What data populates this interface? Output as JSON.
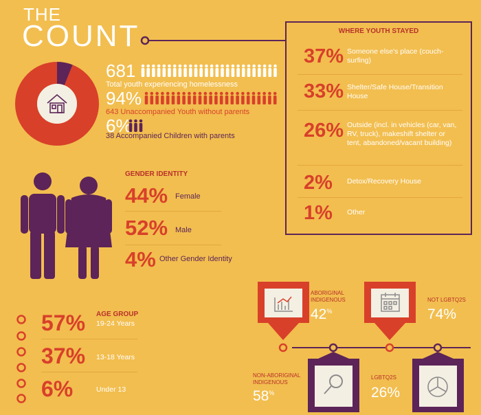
{
  "title": {
    "line1": "THE",
    "line2": "COUNT"
  },
  "colors": {
    "background": "#f2be4f",
    "red": "#d8402a",
    "purple": "#5c2458",
    "white": "#ffffff"
  },
  "count": {
    "total": {
      "value": "681",
      "caption": "Total youth experiencing homelessness"
    },
    "unaccompanied": {
      "value": "94%",
      "caption": "643  Unaccompanied Youth without parents"
    },
    "accompanied": {
      "value": "6%",
      "caption": "38  Accompanied Children with parents"
    },
    "icons": {
      "house": "house-icon",
      "person": "person-icon"
    }
  },
  "chart_data": [
    {
      "type": "pie",
      "title": "",
      "categories": [
        "Unaccompanied Youth",
        "Accompanied Children"
      ],
      "values": [
        94,
        6
      ],
      "colors": [
        "#d8402a",
        "#5c2458"
      ]
    },
    {
      "type": "table",
      "title": "WHERE YOUTH STAYED",
      "rows": [
        {
          "value": "37%",
          "label": "Someone else's place (couch-surfing)"
        },
        {
          "value": "33%",
          "label": "Shelter/Safe House/Transition House"
        },
        {
          "value": "26%",
          "label": "Outside (incl. in vehicles (car, van, RV, truck), makeshift shelter or tent, abandoned/vacant building)"
        },
        {
          "value": "2%",
          "label": "Detox/Recovery House"
        },
        {
          "value": "1%",
          "label": "Other"
        }
      ]
    },
    {
      "type": "table",
      "title": "GENDER IDENTITY",
      "rows": [
        {
          "value": "44%",
          "label": "Female"
        },
        {
          "value": "52%",
          "label": "Male"
        },
        {
          "value": "4%",
          "label": "Other Gender Identity"
        }
      ]
    },
    {
      "type": "table",
      "title": "AGE GROUP",
      "rows": [
        {
          "value": "57%",
          "label": "19-24 Years"
        },
        {
          "value": "37%",
          "label": "13-18 Years"
        },
        {
          "value": "6%",
          "label": "Under 13"
        }
      ]
    },
    {
      "type": "table",
      "title": "",
      "rows": [
        {
          "label": "ABORIGINAL INDIGENOUS",
          "value": "42",
          "icon": "bar-chart-icon"
        },
        {
          "label": "NOT LGBTQ2S",
          "value": "74%",
          "icon": "calendar-icon"
        },
        {
          "label": "NON-ABORIGINAL INDIGENOUS",
          "value": "58",
          "icon": "magnifier-icon"
        },
        {
          "label": "LGBTQ2S",
          "value": "26%",
          "icon": "pie-chart-icon"
        }
      ]
    }
  ],
  "gender": {
    "icons": {
      "male": "male-figure-icon",
      "female": "female-figure-icon"
    }
  },
  "age": {
    "pct_sign": "%"
  }
}
